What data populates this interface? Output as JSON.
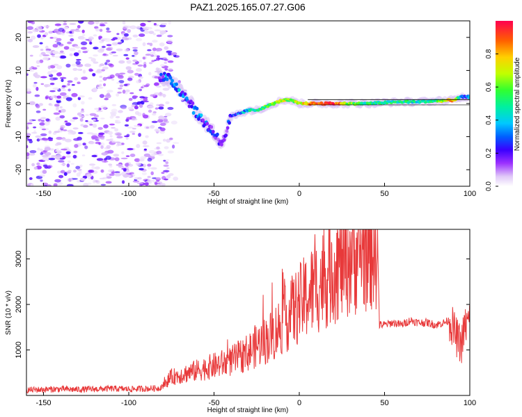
{
  "title": "PAZ1.2025.165.07.27.G06",
  "chart_data": [
    {
      "type": "heatmap",
      "title": "PAZ1.2025.165.07.27.G06",
      "xlabel": "Height of straight line (km)",
      "ylabel": "Frequency (Hz)",
      "xlim": [
        -160,
        100
      ],
      "ylim": [
        -25,
        25
      ],
      "x_ticks": [
        -150,
        -100,
        -50,
        0,
        50,
        100
      ],
      "y_ticks": [
        -20,
        -10,
        0,
        10,
        20
      ],
      "colorbar": {
        "label": "Normalized spectral amplitude",
        "range": [
          0,
          1
        ],
        "ticks": [
          "0.0",
          "0.2",
          "0.4",
          "0.6",
          "0.8"
        ],
        "colors": [
          "#ffffff",
          "#c9a8f5",
          "#7a00ff",
          "#0000ff",
          "#00c8ff",
          "#00ff80",
          "#b0ff00",
          "#ffff00",
          "#ff8000",
          "#ff0040"
        ]
      },
      "description_track": [
        {
          "x": -80,
          "f": 8,
          "a": 0.25
        },
        {
          "x": -75,
          "f": 7,
          "a": 0.35
        },
        {
          "x": -70,
          "f": 4,
          "a": 0.3
        },
        {
          "x": -65,
          "f": 1,
          "a": 0.25
        },
        {
          "x": -60,
          "f": -3,
          "a": 0.3
        },
        {
          "x": -55,
          "f": -6,
          "a": 0.25
        },
        {
          "x": -50,
          "f": -9,
          "a": 0.2
        },
        {
          "x": -45,
          "f": -12,
          "a": 0.2
        },
        {
          "x": -40,
          "f": -4,
          "a": 0.2
        },
        {
          "x": -35,
          "f": -3,
          "a": 0.3
        },
        {
          "x": -30,
          "f": -2,
          "a": 0.4
        },
        {
          "x": -25,
          "f": -2,
          "a": 0.5
        },
        {
          "x": -20,
          "f": -1,
          "a": 0.55
        },
        {
          "x": -15,
          "f": 0,
          "a": 0.6
        },
        {
          "x": -10,
          "f": 1,
          "a": 0.7
        },
        {
          "x": -5,
          "f": 1,
          "a": 0.6
        },
        {
          "x": 0,
          "f": 0,
          "a": 0.7
        },
        {
          "x": 10,
          "f": 0,
          "a": 0.9
        },
        {
          "x": 20,
          "f": 0,
          "a": 1.0
        },
        {
          "x": 30,
          "f": 0,
          "a": 0.6
        },
        {
          "x": 40,
          "f": 0,
          "a": 0.5
        },
        {
          "x": 50,
          "f": 0.3,
          "a": 0.45
        },
        {
          "x": 60,
          "f": 0.5,
          "a": 0.5
        },
        {
          "x": 70,
          "f": 0.5,
          "a": 0.45
        },
        {
          "x": 80,
          "f": 0.8,
          "a": 0.5
        },
        {
          "x": 90,
          "f": 1,
          "a": 0.8
        },
        {
          "x": 95,
          "f": 2,
          "a": 0.3
        },
        {
          "x": 100,
          "f": 2,
          "a": 0.3
        }
      ]
    },
    {
      "type": "line",
      "xlabel": "Height of straight line (km)",
      "ylabel": "SNR (10 * v/v)",
      "xlim": [
        -160,
        100
      ],
      "ylim": [
        0,
        3650
      ],
      "x_ticks": [
        -150,
        -100,
        -50,
        0,
        50,
        100
      ],
      "y_ticks": [
        1000,
        2000,
        3000
      ],
      "line_color": "#e8393a",
      "series": [
        {
          "x": [
            -160,
            -150,
            -140,
            -130,
            -120,
            -110,
            -100,
            -90,
            -82,
            -78,
            -75,
            -70,
            -65,
            -60,
            -55,
            -50,
            -45,
            -40,
            -35,
            -30,
            -25,
            -20,
            -15,
            -12,
            -10,
            -5,
            0,
            5,
            10,
            15,
            20,
            25,
            30,
            35,
            40,
            44,
            46,
            47,
            50,
            55,
            60,
            65,
            70,
            75,
            80,
            85,
            88,
            90,
            92,
            95,
            97,
            99,
            100
          ],
          "values": [
            120,
            130,
            140,
            130,
            140,
            150,
            140,
            150,
            160,
            300,
            400,
            450,
            500,
            550,
            600,
            650,
            700,
            750,
            850,
            950,
            1100,
            1200,
            1350,
            1500,
            1600,
            1800,
            2000,
            2200,
            2400,
            2600,
            2800,
            2950,
            3100,
            3200,
            3300,
            3350,
            3300,
            1550,
            1550,
            1600,
            1550,
            1650,
            1600,
            1600,
            1550,
            1600,
            1650,
            1500,
            1300,
            1100,
            1500,
            1600,
            1700
          ]
        }
      ]
    }
  ]
}
